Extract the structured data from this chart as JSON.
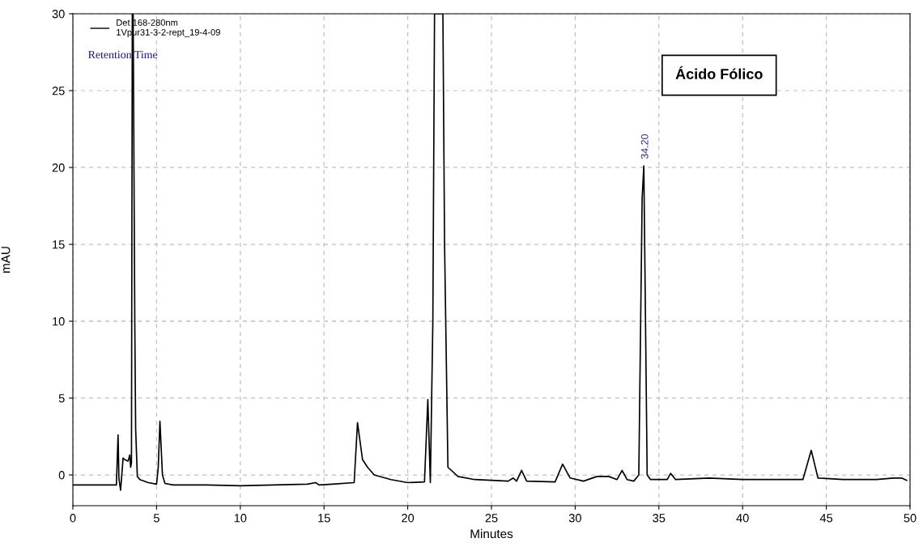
{
  "chart_data": {
    "type": "line",
    "xlabel": "Minutes",
    "ylabel": "mAU",
    "xlim": [
      0,
      50
    ],
    "ylim": [
      -2,
      30
    ],
    "xticks": [
      0,
      5,
      10,
      15,
      20,
      25,
      30,
      35,
      40,
      45,
      50
    ],
    "yticks": [
      0,
      5,
      10,
      15,
      20,
      25,
      30
    ],
    "grid": true,
    "legend": "top left",
    "line_style": "solid",
    "marker": "none",
    "annotations": [
      "Retention Time",
      "Ácido Fólico",
      {
        "text": "34.20",
        "x": 34.2,
        "y": 20.1
      }
    ],
    "series": [
      {
        "name": "Det 168-280nm\n1Vpur31-3-2-rept_19-4-09",
        "color": "#000000",
        "x": [
          0,
          1,
          2,
          2.6,
          2.7,
          2.75,
          2.85,
          3.0,
          3.1,
          3.3,
          3.4,
          3.45,
          3.5,
          3.55,
          3.6,
          3.7,
          3.75,
          3.85,
          4.0,
          4.5,
          5.0,
          5.1,
          5.2,
          5.35,
          5.5,
          6,
          8,
          10,
          12,
          14,
          14.5,
          14.7,
          15.5,
          16.8,
          17.0,
          17.3,
          17.6,
          18,
          19,
          20,
          21.0,
          21.2,
          21.35,
          21.5,
          21.6,
          22.1,
          22.2,
          22.4,
          23,
          24,
          25,
          26,
          26.3,
          26.5,
          26.8,
          27.1,
          28.8,
          29.25,
          29.7,
          30.5,
          31.3,
          32.0,
          32.5,
          32.8,
          33.1,
          33.5,
          33.8,
          34.0,
          34.1,
          34.3,
          34.5,
          35.5,
          35.7,
          36,
          38,
          40,
          42,
          43.6,
          44.1,
          44.5,
          46,
          48,
          49,
          49.5,
          49.8
        ],
        "values": [
          -0.65,
          -0.65,
          -0.65,
          -0.65,
          2.6,
          -0.2,
          -1.0,
          1.1,
          1.0,
          0.9,
          1.3,
          0.5,
          0.8,
          30,
          30,
          9.7,
          3.0,
          -0.1,
          -0.3,
          -0.5,
          -0.6,
          0.5,
          3.5,
          0.0,
          -0.55,
          -0.65,
          -0.65,
          -0.7,
          -0.65,
          -0.6,
          -0.5,
          -0.65,
          -0.6,
          -0.5,
          3.4,
          1.0,
          0.5,
          0.0,
          -0.3,
          -0.5,
          -0.45,
          4.9,
          -0.5,
          10,
          30,
          30,
          15,
          0.5,
          -0.1,
          -0.3,
          -0.35,
          -0.4,
          -0.2,
          -0.4,
          0.3,
          -0.4,
          -0.45,
          0.7,
          -0.2,
          -0.4,
          -0.1,
          -0.1,
          -0.3,
          0.3,
          -0.3,
          -0.4,
          0.0,
          18,
          20.1,
          0.0,
          -0.3,
          -0.3,
          0.1,
          -0.3,
          -0.2,
          -0.3,
          -0.3,
          -0.3,
          1.6,
          -0.2,
          -0.3,
          -0.3,
          -0.2,
          -0.2,
          -0.35
        ]
      }
    ]
  }
}
